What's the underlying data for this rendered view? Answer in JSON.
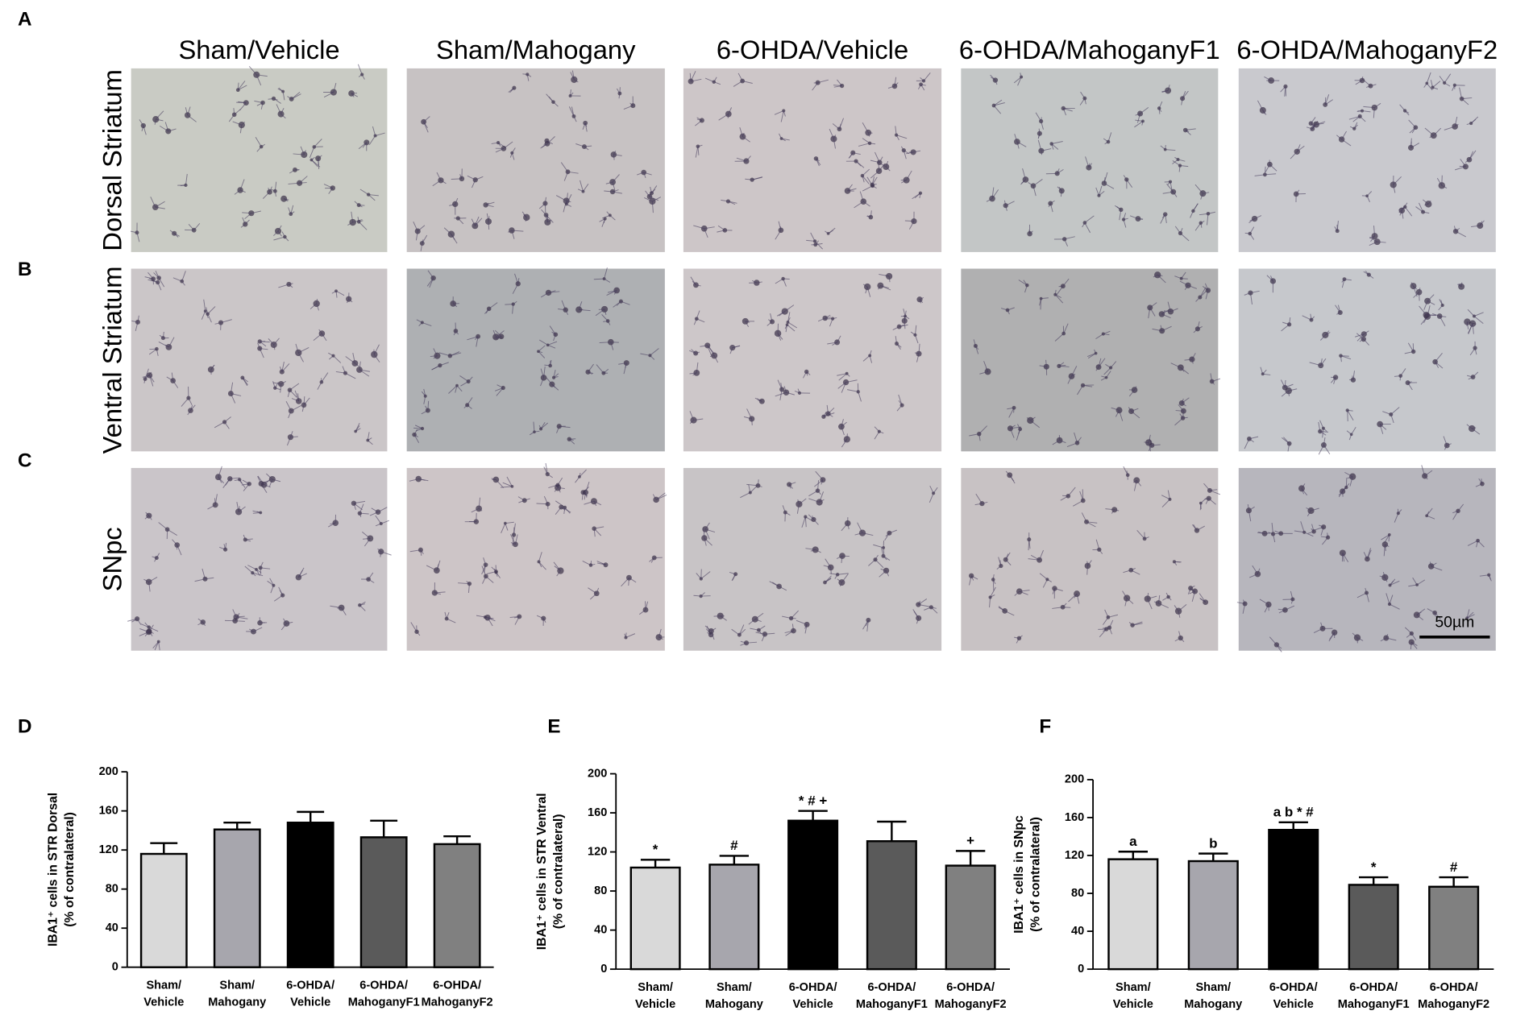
{
  "panel_letters": [
    "A",
    "B",
    "C"
  ],
  "columns": [
    "Sham/Vehicle",
    "Sham/Mahogany",
    "6-OHDA/Vehicle",
    "6-OHDA/MahoganyF1",
    "6-OHDA/MahoganyF2"
  ],
  "rows": [
    "Dorsal Striatum",
    "Ventral Striatum",
    "SNpc"
  ],
  "scale_bar": "50µm",
  "chart_data": [
    {
      "type": "bar",
      "label": "D",
      "y_label": [
        "IBA1⁺ cells in STR Dorsal",
        "(% of contralateral)"
      ],
      "categories": [
        "Sham/\nVehicle",
        "Sham/\nMahogany",
        "6-OHDA/\nVehicle",
        "6-OHDA/\nMahoganyF1",
        "6-OHDA/\nMahoganyF2"
      ],
      "values": [
        116,
        141,
        148,
        133,
        126
      ],
      "errors": [
        11,
        7,
        11,
        17,
        8
      ],
      "colors": [
        "#d9d9d9",
        "#a7a6ad",
        "#000000",
        "#5a5a5a",
        "#808080"
      ],
      "ylim": [
        0,
        200
      ],
      "yticks": [
        0,
        40,
        80,
        120,
        160,
        200
      ]
    },
    {
      "type": "bar",
      "label": "E",
      "y_label": [
        "IBA1⁺ cells in STR Ventral",
        "(% of contralateral)"
      ],
      "categories": [
        "Sham/\nVehicle",
        "Sham/\nMahogany",
        "6-OHDA/\nVehicle",
        "6-OHDA/\nMahoganyF1",
        "6-OHDA/\nMahoganyF2"
      ],
      "values": [
        104,
        107,
        152,
        131,
        106
      ],
      "errors": [
        8,
        9,
        10,
        20,
        15
      ],
      "sig_labels": [
        "*",
        "#",
        "* # +",
        null,
        "+"
      ],
      "colors": [
        "#d9d9d9",
        "#a7a6ad",
        "#000000",
        "#5a5a5a",
        "#808080"
      ],
      "ylim": [
        0,
        200
      ],
      "yticks": [
        0,
        40,
        80,
        120,
        160,
        200
      ]
    },
    {
      "type": "bar",
      "label": "F",
      "y_label": [
        "IBA1⁺ cells in SNpc",
        "(% of contralateral)"
      ],
      "categories": [
        "Sham/\nVehicle",
        "Sham/\nMahogany",
        "6-OHDA/\nVehicle",
        "6-OHDA/\nMahoganyF1",
        "6-OHDA/\nMahoganyF2"
      ],
      "values": [
        116,
        114,
        147,
        89,
        87
      ],
      "errors": [
        8,
        8,
        8,
        8,
        10
      ],
      "sig_labels": [
        "a",
        "b",
        "a b * #",
        "*",
        "#"
      ],
      "colors": [
        "#d9d9d9",
        "#a7a6ad",
        "#000000",
        "#5a5a5a",
        "#808080"
      ],
      "ylim": [
        0,
        200
      ],
      "yticks": [
        0,
        40,
        80,
        120,
        160,
        200
      ]
    }
  ]
}
